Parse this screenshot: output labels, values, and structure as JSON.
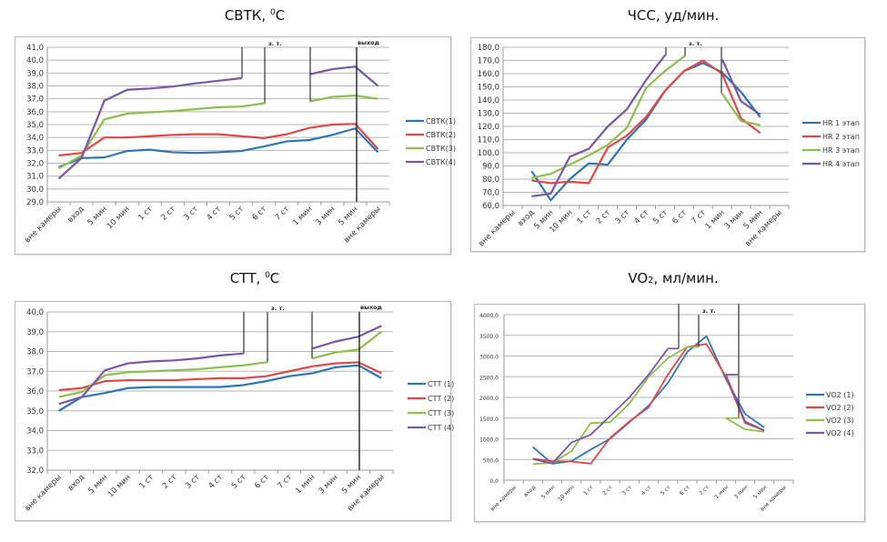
{
  "chart_data": [
    {
      "id": "svtk",
      "type": "line",
      "title": "СВТК, ",
      "title_unit": "0",
      "title_suffix": "С",
      "xlabel": "",
      "ylabel": "",
      "ylim": [
        29.0,
        41.0
      ],
      "ytick_step": 1.0,
      "grid": true,
      "legend_position": "right",
      "categories": [
        "вне камеры",
        "вход",
        "5 мин",
        "10 мин",
        "1 ст",
        "2 ст",
        "3 ст",
        "4 ст",
        "5 ст",
        "6 ст",
        "7 ст",
        "1 мин",
        "3 мин",
        "5 мин",
        "вне камеры"
      ],
      "point_offset": 0,
      "annotations": {
        "zt_label": "з. т.",
        "exit_label": "выход"
      },
      "series": [
        {
          "name": "СВТК(1)",
          "color": "#2e75b6",
          "values": [
            31.7,
            32.4,
            32.45,
            32.95,
            33.05,
            32.85,
            32.8,
            32.85,
            32.95,
            33.3,
            33.7,
            33.8,
            34.2,
            34.7,
            32.85
          ]
        },
        {
          "name": "СВТК(2)",
          "color": "#e04848",
          "values": [
            32.6,
            32.8,
            34.0,
            34.0,
            34.1,
            34.2,
            34.25,
            34.25,
            34.1,
            33.95,
            34.25,
            34.75,
            35.0,
            35.05,
            33.1
          ]
        },
        {
          "name": "СВТК(3)",
          "color": "#8cbf4b",
          "values": [
            31.6,
            32.6,
            35.4,
            35.85,
            35.95,
            36.05,
            36.2,
            36.35,
            36.4,
            36.65,
            null,
            36.8,
            37.15,
            37.25,
            37.0
          ]
        },
        {
          "name": "СВТК(4)",
          "color": "#7b55a6",
          "values": [
            30.8,
            32.4,
            36.85,
            37.7,
            37.8,
            37.95,
            38.2,
            38.4,
            38.6,
            null,
            null,
            38.9,
            39.3,
            39.5,
            38.0
          ]
        }
      ]
    },
    {
      "id": "hr",
      "type": "line",
      "title": "ЧСС, уд/мин.",
      "xlabel": "",
      "ylabel": "",
      "ylim": [
        60.0,
        180.0
      ],
      "ytick_step": 10.0,
      "grid": true,
      "legend_position": "right",
      "categories": [
        "вне камеры",
        "вход",
        "5 мин",
        "10 мин",
        "1 ст",
        "2 ст",
        "3 ст",
        "4 ст",
        "5 ст",
        "6 ст",
        "7 ст",
        "1 мин",
        "3 мин",
        "5 мин",
        "вне камеры"
      ],
      "point_offset": 1,
      "annotations": {
        "zt_label": "з. т."
      },
      "series": [
        {
          "name": "HR 1 этап",
          "color": "#2e75b6",
          "values": [
            86,
            64,
            80,
            92,
            91,
            110,
            125,
            147,
            162,
            168,
            161,
            146,
            127
          ]
        },
        {
          "name": "HR 2 этап",
          "color": "#e04848",
          "values": [
            79,
            77,
            78,
            77,
            104,
            113,
            127,
            147,
            162,
            170,
            160,
            126,
            115
          ]
        },
        {
          "name": "HR 3 этап",
          "color": "#8cbf4b",
          "values": [
            81,
            84,
            91,
            98,
            106,
            119,
            149,
            162,
            173,
            null,
            145,
            124,
            121
          ]
        },
        {
          "name": "HR 4 этап",
          "color": "#7b55a6",
          "values": [
            67,
            69,
            97,
            103,
            120,
            133,
            155,
            174,
            null,
            null,
            171,
            139,
            129
          ]
        }
      ]
    },
    {
      "id": "ctt",
      "type": "line",
      "title": "СТТ, ",
      "title_unit": "0",
      "title_suffix": "С",
      "xlabel": "",
      "ylabel": "",
      "ylim": [
        32.0,
        40.0
      ],
      "ytick_step": 1.0,
      "grid": true,
      "legend_position": "right",
      "categories": [
        "вне камеры",
        "вход",
        "5 мин",
        "10 мин",
        "1 ст",
        "2 ст",
        "3 ст",
        "4 ст",
        "5 ст",
        "6 ст",
        "7 ст",
        "1 мин",
        "3 мин",
        "5 мин",
        "вне камеры"
      ],
      "point_offset": 0,
      "annotations": {
        "zt_label": "з. т.",
        "exit_label": "выход"
      },
      "series": [
        {
          "name": "СТТ (1)",
          "color": "#2e75b6",
          "values": [
            35.0,
            35.7,
            35.9,
            36.15,
            36.2,
            36.2,
            36.2,
            36.2,
            36.3,
            36.5,
            36.75,
            36.9,
            37.2,
            37.3,
            36.65
          ]
        },
        {
          "name": "СТТ (2)",
          "color": "#e04848",
          "values": [
            36.05,
            36.15,
            36.5,
            36.55,
            36.55,
            36.55,
            36.6,
            36.65,
            36.65,
            36.75,
            37.0,
            37.25,
            37.4,
            37.45,
            36.9
          ]
        },
        {
          "name": "СТТ (3)",
          "color": "#8cbf4b",
          "values": [
            35.7,
            35.95,
            36.8,
            36.95,
            37.0,
            37.05,
            37.1,
            37.2,
            37.3,
            37.45,
            null,
            37.65,
            37.95,
            38.1,
            39.0
          ]
        },
        {
          "name": "СТТ (4)",
          "color": "#7b55a6",
          "values": [
            35.35,
            35.7,
            37.05,
            37.4,
            37.5,
            37.55,
            37.65,
            37.8,
            37.9,
            null,
            null,
            38.15,
            38.5,
            38.75,
            39.3
          ]
        }
      ]
    },
    {
      "id": "vo2",
      "type": "line",
      "title": "VO",
      "title_sub": "2",
      "title_suffix": ",  мл/мин.",
      "xlabel": "",
      "ylabel": "",
      "ylim": [
        0.0,
        4000.0
      ],
      "ytick_step": 500.0,
      "grid": true,
      "legend_position": "right",
      "categories": [
        "вне камеры",
        "вход",
        "5 мин",
        "10 мин",
        "1 ст",
        "2 ст",
        "3 ст",
        "4 ст",
        "5 ст",
        "6 ст",
        "7 ст",
        "1 мин",
        "3 мин",
        "5 мин",
        "вне камеры"
      ],
      "point_offset": 1,
      "annotations": {
        "zt_label": "з. т."
      },
      "series": [
        {
          "name": "VO2 (1)",
          "color": "#2e75b6",
          "values": [
            800,
            400,
            460,
            740,
            1000,
            1400,
            1800,
            2350,
            3100,
            3480,
            2450,
            1600,
            1270
          ]
        },
        {
          "name": "VO2 (2)",
          "color": "#e04848",
          "values": [
            520,
            460,
            450,
            400,
            1020,
            1420,
            1760,
            2550,
            3220,
            3290,
            2500,
            1380,
            1200
          ]
        },
        {
          "name": "VO2 (3)",
          "color": "#8cbf4b",
          "values": [
            390,
            420,
            700,
            1380,
            1400,
            1850,
            2500,
            2950,
            3220,
            null,
            1500,
            1230,
            1170
          ]
        },
        {
          "name": "VO2 (4)",
          "color": "#7b55a6",
          "values": [
            510,
            400,
            910,
            1100,
            1550,
            2000,
            2550,
            3180,
            null,
            null,
            2550,
            1420,
            1200
          ]
        }
      ]
    }
  ]
}
